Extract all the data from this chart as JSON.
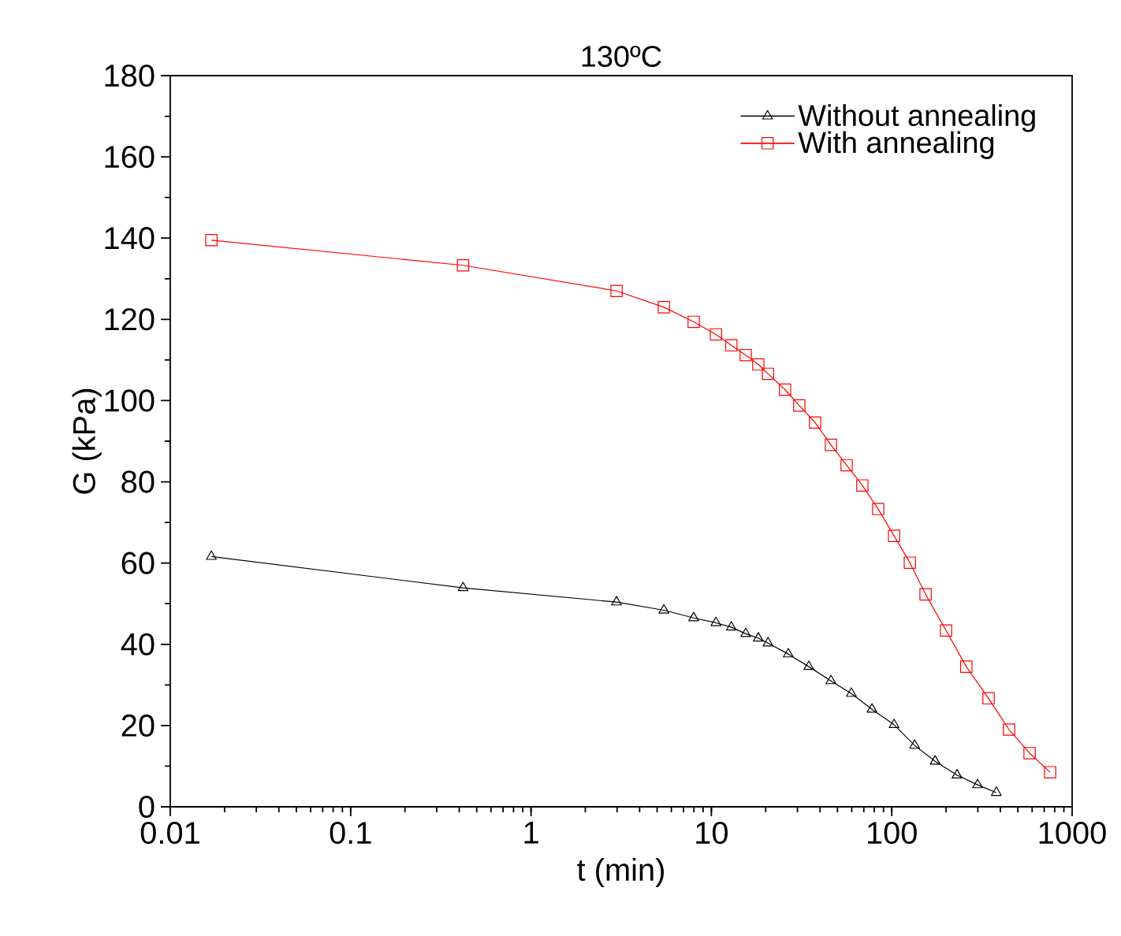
{
  "chart_data": {
    "type": "line",
    "title": "130ºC",
    "xlabel": "t (min)",
    "ylabel": "G (kPa)",
    "log": "x",
    "xlim": [
      0.01,
      1000
    ],
    "xticks": [
      0.01,
      0.1,
      1,
      10,
      100,
      1000
    ],
    "ylim": [
      0,
      180
    ],
    "yticks": [
      0,
      20,
      40,
      60,
      80,
      100,
      120,
      140,
      160,
      180
    ],
    "grid": false,
    "legend": "top right",
    "line_style": "solid",
    "series": [
      {
        "name": "Without annealing",
        "color": "#000000",
        "marker": "triangle",
        "x": [
          0.0169,
          0.42,
          2.98,
          5.45,
          7.98,
          10.6,
          12.9,
          15.5,
          18.2,
          20.6,
          26.7,
          34.7,
          46,
          59.7,
          77.7,
          103,
          134,
          174,
          230,
          299,
          380
        ],
        "values": [
          61.6,
          53.9,
          50.4,
          48.4,
          46.5,
          45.3,
          44.2,
          42.6,
          41.5,
          40.3,
          37.6,
          34.5,
          31.0,
          27.9,
          24.0,
          20.2,
          15.1,
          11.2,
          7.8,
          5.4,
          3.5
        ]
      },
      {
        "name": "With annealing",
        "color": "#ff0000",
        "marker": "square",
        "x": [
          0.0169,
          0.42,
          2.98,
          5.45,
          7.98,
          10.6,
          12.9,
          15.5,
          18.2,
          20.6,
          25.6,
          30.7,
          37.6,
          46,
          56.2,
          68.7,
          84.1,
          103,
          126,
          154,
          200,
          259,
          344,
          447,
          581,
          755
        ],
        "values": [
          139.5,
          133.3,
          127,
          123,
          119.4,
          116.3,
          113.6,
          111.2,
          108.9,
          106.6,
          102.7,
          98.8,
          94.6,
          89.1,
          84.1,
          79.1,
          73.3,
          66.7,
          60.1,
          52.3,
          43.4,
          34.5,
          26.7,
          19.0,
          13.2,
          8.5
        ]
      }
    ]
  }
}
